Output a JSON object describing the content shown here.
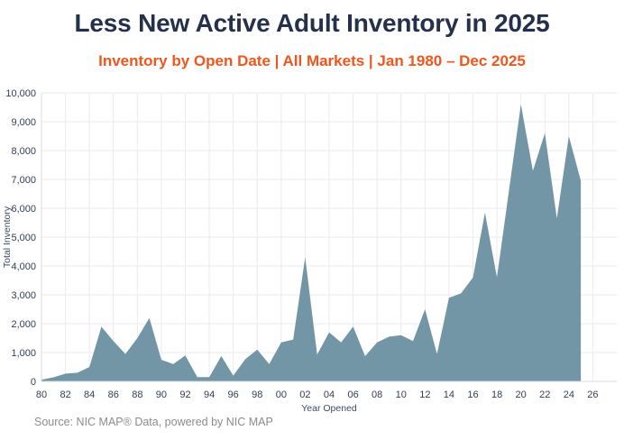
{
  "header": {
    "title": "Less New Active Adult Inventory in 2025",
    "subtitle": "Inventory by Open Date | All Markets | Jan 1980 – Dec 2025"
  },
  "footer": {
    "source": "Source: NIC MAP® Data, powered by NIC MAP"
  },
  "colors": {
    "title": "#25304a",
    "subtitle_accent": "#f0561d",
    "area_fill": "#6b90a2",
    "gridline": "#eaebf0",
    "axis_line": "#d9dbe1",
    "tick_label": "#323e58",
    "source_text": "#8c8c8c"
  },
  "chart_data": {
    "type": "area",
    "title": "Less New Active Adult Inventory in 2025",
    "subtitle": "Inventory by Open Date | All Markets | Jan 1980 – Dec 2025",
    "xlabel": "Year Opened",
    "ylabel": "Total Inventory",
    "x": [
      1980,
      1981,
      1982,
      1983,
      1984,
      1985,
      1986,
      1987,
      1988,
      1989,
      1990,
      1991,
      1992,
      1993,
      1994,
      1995,
      1996,
      1997,
      1998,
      1999,
      2000,
      2001,
      2002,
      2003,
      2004,
      2005,
      2006,
      2007,
      2008,
      2009,
      2010,
      2011,
      2012,
      2013,
      2014,
      2015,
      2016,
      2017,
      2018,
      2019,
      2020,
      2021,
      2022,
      2023,
      2024,
      2025
    ],
    "values": [
      60,
      140,
      270,
      300,
      500,
      1900,
      1400,
      950,
      1500,
      2200,
      750,
      600,
      900,
      150,
      150,
      880,
      200,
      770,
      1100,
      600,
      1350,
      1450,
      4300,
      930,
      1700,
      1350,
      1900,
      875,
      1350,
      1550,
      1600,
      1400,
      2500,
      950,
      2900,
      3050,
      3600,
      5850,
      3600,
      6600,
      9600,
      7300,
      8600,
      5650,
      8500,
      6950
    ],
    "xlim": [
      1980,
      2028
    ],
    "ylim": [
      0,
      10000
    ],
    "x_tick_years": [
      1980,
      1982,
      1984,
      1986,
      1988,
      1990,
      1992,
      1994,
      1996,
      1998,
      2000,
      2002,
      2004,
      2006,
      2008,
      2010,
      2012,
      2014,
      2016,
      2018,
      2020,
      2022,
      2024,
      2026
    ],
    "x_tick_labels": [
      "80",
      "82",
      "84",
      "86",
      "88",
      "90",
      "92",
      "94",
      "96",
      "98",
      "00",
      "02",
      "04",
      "06",
      "08",
      "10",
      "12",
      "14",
      "16",
      "18",
      "20",
      "22",
      "24",
      "26"
    ],
    "y_ticks": [
      0,
      1000,
      2000,
      3000,
      4000,
      5000,
      6000,
      7000,
      8000,
      9000,
      10000
    ],
    "grid": true,
    "legend": "none",
    "area_color": "#6b90a2"
  }
}
